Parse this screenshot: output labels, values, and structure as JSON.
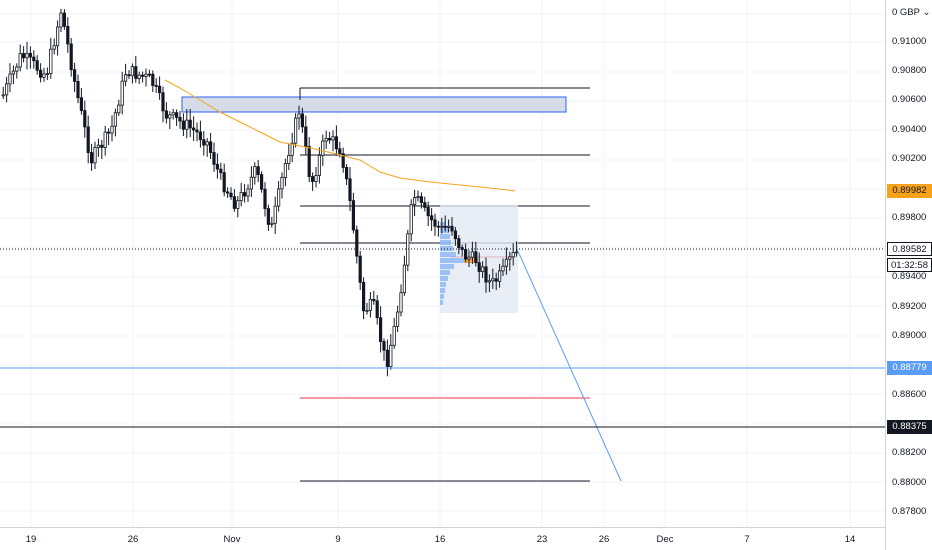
{
  "axis": {
    "currency": "0 GBP",
    "currency_caret": "⌄"
  },
  "price_ticks": [
    "0.91000",
    "0.90800",
    "0.90600",
    "0.90400",
    "0.90200",
    "0.89800",
    "0.89400",
    "0.89200",
    "0.89000",
    "0.88600",
    "0.88200",
    "0.88000",
    "0.87800"
  ],
  "date_ticks": [
    "19",
    "26",
    "Nov",
    "9",
    "16",
    "23",
    "26",
    "Dec",
    "7",
    "14"
  ],
  "price_labels": {
    "moving_average": {
      "value": "0.89982",
      "bg": "#f7a21b",
      "color": "#131722"
    },
    "current": {
      "value": "0.89582",
      "bg": "#ffffff",
      "color": "#131722"
    },
    "countdown": {
      "value": "01:32:58",
      "bg": "#ffffff",
      "color": "#131722"
    },
    "blue_line": {
      "value": "0.88779",
      "bg": "#5b9cf6",
      "color": "#ffffff"
    },
    "black_line": {
      "value": "0.88375",
      "bg": "#131722",
      "color": "#ffffff"
    }
  },
  "colors": {
    "candle": "#131722",
    "moving_average": "#f7a21b",
    "trendline": "#5b9cf6",
    "support_red": "#f23645",
    "zone_fill": "#d6dce7",
    "zone_border": "#2962ff",
    "volume_profile": "#5b9cf6",
    "volume_profile_poc": "#f7a21b",
    "volume_profile_box": "#e3e8f2"
  },
  "chart_data": {
    "type": "candlestick",
    "symbol_currency": "GBP",
    "y_range": [
      0.877,
      0.9124
    ],
    "current_price": 0.89582,
    "moving_average_last": 0.89982,
    "horizontal_levels": [
      0.9068,
      0.9024,
      0.899,
      0.8964,
      0.8859,
      0.8801
    ],
    "full_width_lines": [
      {
        "price": 0.88779,
        "color": "blue"
      },
      {
        "price": 0.88375,
        "color": "black"
      }
    ],
    "supply_zone": [
      0.9052,
      0.9062
    ],
    "projected_trendline": [
      {
        "date": "Nov 20",
        "price": 0.8958
      },
      {
        "date": "Nov 27",
        "price": 0.88
      }
    ]
  }
}
